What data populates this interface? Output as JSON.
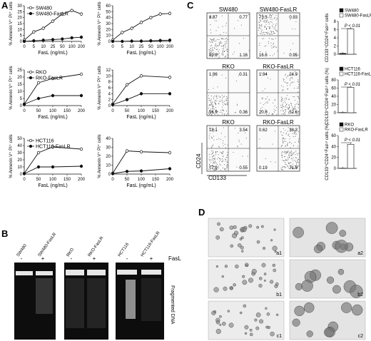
{
  "panel_labels": {
    "a": "A",
    "b": "B",
    "c": "C",
    "d": "D"
  },
  "colors": {
    "axis": "#111111",
    "open_series": "#111111",
    "filled_series": "#111111",
    "gel_bg": "#0b0b0b",
    "micro_bg": "#e8e8e8"
  },
  "chart_data": [
    {
      "type": "line",
      "panel": "A",
      "row": 1,
      "col": 1,
      "xticks": [
        "0",
        "5",
        "10",
        "25",
        "50",
        "100",
        "200"
      ],
      "x": [
        0,
        5,
        10,
        25,
        50,
        100,
        200
      ],
      "xlabel": "FasL (ng/mL)",
      "ylabel": "% Annexin V⁺ PI⁺ cells",
      "ylim": [
        0,
        30
      ],
      "yticks": [
        0,
        5,
        10,
        15,
        20,
        25,
        30
      ],
      "legend_placement": "top-left",
      "series": [
        {
          "name": "SW480",
          "marker": "open",
          "values": [
            1,
            8,
            11,
            17,
            23,
            26,
            23
          ]
        },
        {
          "name": "SW480-FasLR",
          "marker": "filled",
          "values": [
            0,
            0.5,
            1,
            1.5,
            2,
            3,
            3.5
          ]
        }
      ]
    },
    {
      "type": "line",
      "panel": "A",
      "row": 1,
      "col": 2,
      "xticks": [
        "0",
        "5",
        "10",
        "25",
        "50",
        "100",
        "200"
      ],
      "x": [
        0,
        5,
        10,
        25,
        50,
        100,
        200
      ],
      "xlabel": "FasL (ng/mL)",
      "ylabel": "% Annexin V⁺ PI⁺ cells",
      "ylim": [
        0,
        60
      ],
      "yticks": [
        0,
        10,
        20,
        30,
        40,
        50,
        60
      ],
      "series": [
        {
          "marker": "open",
          "values": [
            2,
            15,
            22,
            32,
            40,
            46,
            47
          ]
        },
        {
          "marker": "filled",
          "values": [
            0,
            0,
            0.5,
            0.5,
            1,
            1.5,
            2
          ]
        }
      ]
    },
    {
      "type": "line",
      "panel": "A",
      "row": 2,
      "col": 1,
      "xticks": [
        "0",
        "50",
        "100",
        "150",
        "200"
      ],
      "x": [
        0,
        50,
        100,
        200
      ],
      "xlabel": "FasL (ng/mL)",
      "ylabel": "% Annexin V⁺ PI⁺ cells",
      "ylim": [
        0,
        25
      ],
      "yticks": [
        0,
        5,
        10,
        15,
        20,
        25
      ],
      "legend_placement": "top-left",
      "series": [
        {
          "name": "RKO",
          "marker": "open",
          "values": [
            1,
            16,
            19,
            22
          ]
        },
        {
          "name": "RKO-FasLR",
          "marker": "filled",
          "values": [
            1,
            5,
            7,
            7
          ]
        }
      ]
    },
    {
      "type": "line",
      "panel": "A",
      "row": 2,
      "col": 2,
      "xticks": [
        "0",
        "50",
        "100",
        "150",
        "200"
      ],
      "x": [
        0,
        50,
        100,
        200
      ],
      "xlabel": "FasL (ng/mL)",
      "ylabel": "% Annexin V⁺ PI⁺ cells",
      "ylim": [
        0,
        12
      ],
      "yticks": [
        0,
        2,
        4,
        6,
        8,
        10,
        12
      ],
      "series": [
        {
          "marker": "open",
          "values": [
            0.5,
            7,
            10,
            9.5
          ]
        },
        {
          "marker": "filled",
          "values": [
            0.3,
            2,
            4,
            4
          ]
        }
      ]
    },
    {
      "type": "line",
      "panel": "A",
      "row": 3,
      "col": 1,
      "xticks": [
        "0",
        "50",
        "100",
        "150",
        "200"
      ],
      "x": [
        0,
        50,
        100,
        200
      ],
      "xlabel": "FasL (ng/mL)",
      "ylabel": "% Annexin V⁺ PI⁺ cells",
      "ylim": [
        0,
        50
      ],
      "yticks": [
        0,
        10,
        20,
        30,
        40,
        50
      ],
      "legend_placement": "top-left",
      "series": [
        {
          "name": "HCT116",
          "marker": "open",
          "values": [
            1,
            30,
            38,
            35
          ]
        },
        {
          "name": "HCT116-FasLR",
          "marker": "filled",
          "values": [
            0.5,
            10,
            10,
            11
          ]
        }
      ]
    },
    {
      "type": "line",
      "panel": "A",
      "row": 3,
      "col": 2,
      "xticks": [
        "0",
        "50",
        "100",
        "150",
        "200"
      ],
      "x": [
        0,
        50,
        100,
        200
      ],
      "xlabel": "FasL (ng/mL)",
      "ylabel": "% Annexin V⁺ PI⁺ cells",
      "ylim": [
        0,
        40
      ],
      "yticks": [
        0,
        10,
        20,
        30,
        40
      ],
      "series": [
        {
          "marker": "open",
          "values": [
            1,
            26,
            25,
            24
          ]
        },
        {
          "marker": "filled",
          "values": [
            0.5,
            3,
            3.5,
            6
          ]
        }
      ]
    },
    {
      "type": "bar",
      "panel": "C",
      "row": 1,
      "ylabel": "CD133⁺CD24⁺Fasᴸᵒ cells",
      "ylim": [
        0,
        8
      ],
      "yticks": [
        0,
        2,
        4,
        6,
        8
      ],
      "annotation": "P < 0.01",
      "series": [
        {
          "name": "SW480",
          "fill": "#111111",
          "values": [
            0.2
          ]
        },
        {
          "name": "SW480-FasLR",
          "fill": "#ffffff",
          "values": [
            6.2
          ]
        }
      ]
    },
    {
      "type": "bar",
      "panel": "C",
      "row": 2,
      "ylabel": "CD133⁺CD24⁺Fasᴸᵒ cells (%)",
      "ylim": [
        0,
        80
      ],
      "yticks": [
        0,
        20,
        40,
        60,
        80
      ],
      "annotation": "P < 0.01",
      "series": [
        {
          "name": "HCT116",
          "fill": "#111111",
          "values": [
            0.5
          ]
        },
        {
          "name": "HCT116-FasLR",
          "fill": "#ffffff",
          "values": [
            62
          ]
        }
      ]
    },
    {
      "type": "bar",
      "panel": "C",
      "row": 3,
      "ylabel": "CD133⁺CD24⁺Fasᴸᵒ cells (%)",
      "ylim": [
        0,
        60
      ],
      "yticks": [
        0,
        20,
        40,
        60
      ],
      "annotation": "P < 0.01",
      "series": [
        {
          "name": "RKO",
          "fill": "#111111",
          "values": [
            0.3
          ]
        },
        {
          "name": "RKO-FasLR",
          "fill": "#ffffff",
          "values": [
            44
          ]
        }
      ]
    }
  ],
  "gel": {
    "lanes": [
      "SW480",
      "SW480-FasLR",
      "RKO",
      "RKO-FasLR",
      "HCT116",
      "HCT116-FasLR"
    ],
    "signs": [
      "-",
      "+",
      "-",
      "+",
      "-",
      "+",
      "-",
      "+",
      "-",
      "+",
      "-",
      "+"
    ],
    "treatment_label": "FasL",
    "band_label": "Fragmented DNA"
  },
  "flow": {
    "titles": [
      "SW480",
      "SW480-FasLR",
      "RKO",
      "RKO-FasLR",
      "RKO",
      "RKO-FasLR"
    ],
    "quadrant_values": [
      [
        "8.87",
        "0.77",
        "89.8",
        "1.16"
      ],
      [
        "73.3",
        "0.93",
        "16.6",
        "0.95"
      ],
      [
        "1.96",
        "0.31",
        "96.9",
        "0.36"
      ],
      [
        "1.94",
        "24.9",
        "20.6",
        "52.6"
      ],
      [
        "18.1",
        "3.54",
        "77.9",
        "0.55"
      ],
      [
        "0.62",
        "38.3",
        "0.19",
        "71.9"
      ]
    ],
    "y_axis": "CD24",
    "x_axis": "CD133"
  },
  "micro": {
    "labels": [
      "a1",
      "a2",
      "b1",
      "b2",
      "c1",
      "c2"
    ]
  }
}
